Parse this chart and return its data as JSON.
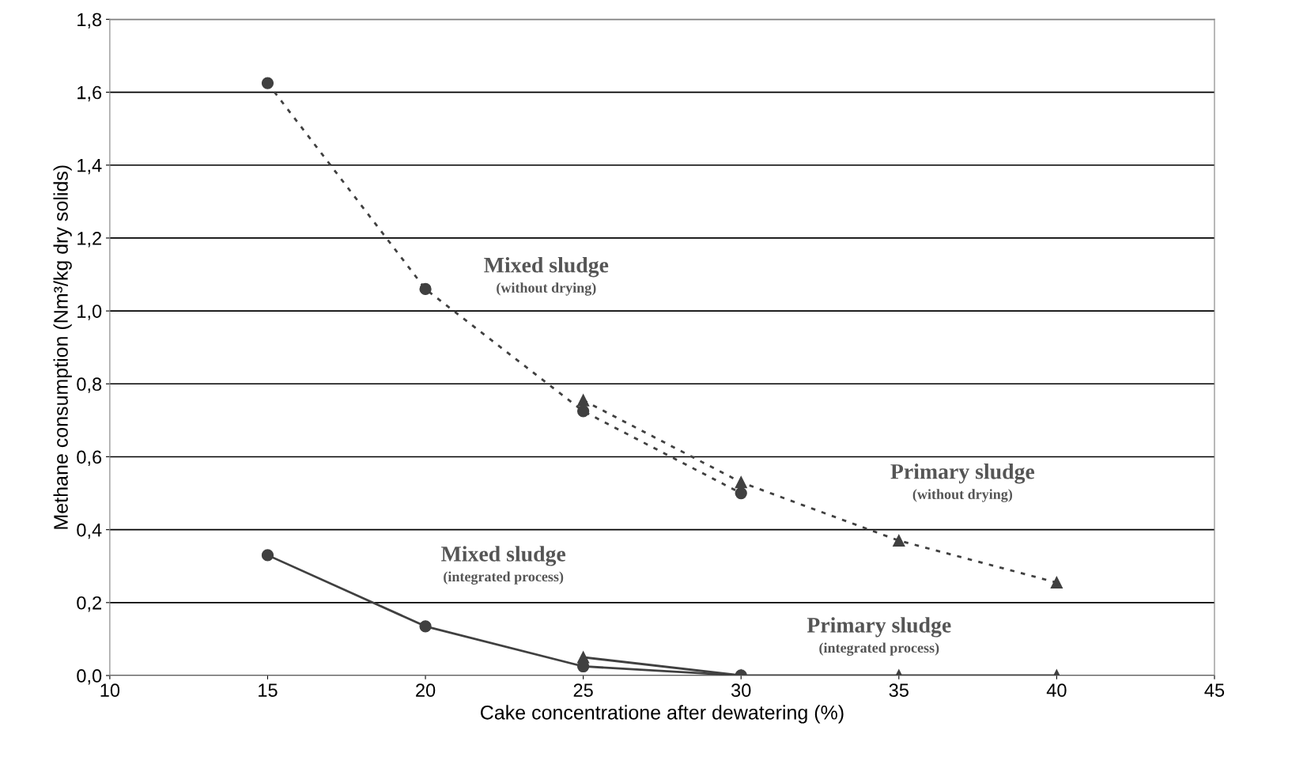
{
  "chart_data": {
    "type": "line",
    "xlabel": "Cake concentratione after dewatering (%)",
    "ylabel": "Methane consumption (Nm³/kg dry solids)",
    "xlim": [
      10,
      45
    ],
    "xticks": [
      10,
      15,
      20,
      25,
      30,
      35,
      40,
      45
    ],
    "ylim": [
      0,
      1.8
    ],
    "yticks": [
      {
        "value": 0,
        "label": "0,0"
      },
      {
        "value": 0.2,
        "label": "0,2"
      },
      {
        "value": 0.4,
        "label": "0,4"
      },
      {
        "value": 0.6,
        "label": "0,6"
      },
      {
        "value": 0.8,
        "label": "0,8"
      },
      {
        "value": 1.0,
        "label": "1,0"
      },
      {
        "value": 1.2,
        "label": "1,2"
      },
      {
        "value": 1.4,
        "label": "1,4"
      },
      {
        "value": 1.6,
        "label": "1,6"
      },
      {
        "value": 1.8,
        "label": "1,8"
      }
    ],
    "grid": "y",
    "series": [
      {
        "name": "Mixed sludge\n(without drying)",
        "color": "#404040",
        "marker": "circle",
        "line_style": "dotted",
        "x": [
          15,
          20,
          25,
          30
        ],
        "values": [
          1.625,
          1.06,
          0.725,
          0.5
        ]
      },
      {
        "name": "Primary sludge\n(without drying)",
        "color": "#404040",
        "marker": "triangle",
        "line_style": "dotted",
        "x": [
          25,
          30,
          35,
          40
        ],
        "values": [
          0.755,
          0.53,
          0.37,
          0.255
        ]
      },
      {
        "name": "Mixed sludge\n(integrated process)",
        "color": "#404040",
        "marker": "circle",
        "line_style": "solid",
        "x": [
          15,
          20,
          25,
          30
        ],
        "values": [
          0.33,
          0.135,
          0.025,
          0.0
        ]
      },
      {
        "name": "Primary sludge\n(integrated process)",
        "color": "#404040",
        "marker": "triangle",
        "line_style": "solid",
        "x": [
          25,
          30,
          35,
          40
        ],
        "values": [
          0.05,
          0.0,
          0.0,
          0.0
        ]
      }
    ]
  }
}
